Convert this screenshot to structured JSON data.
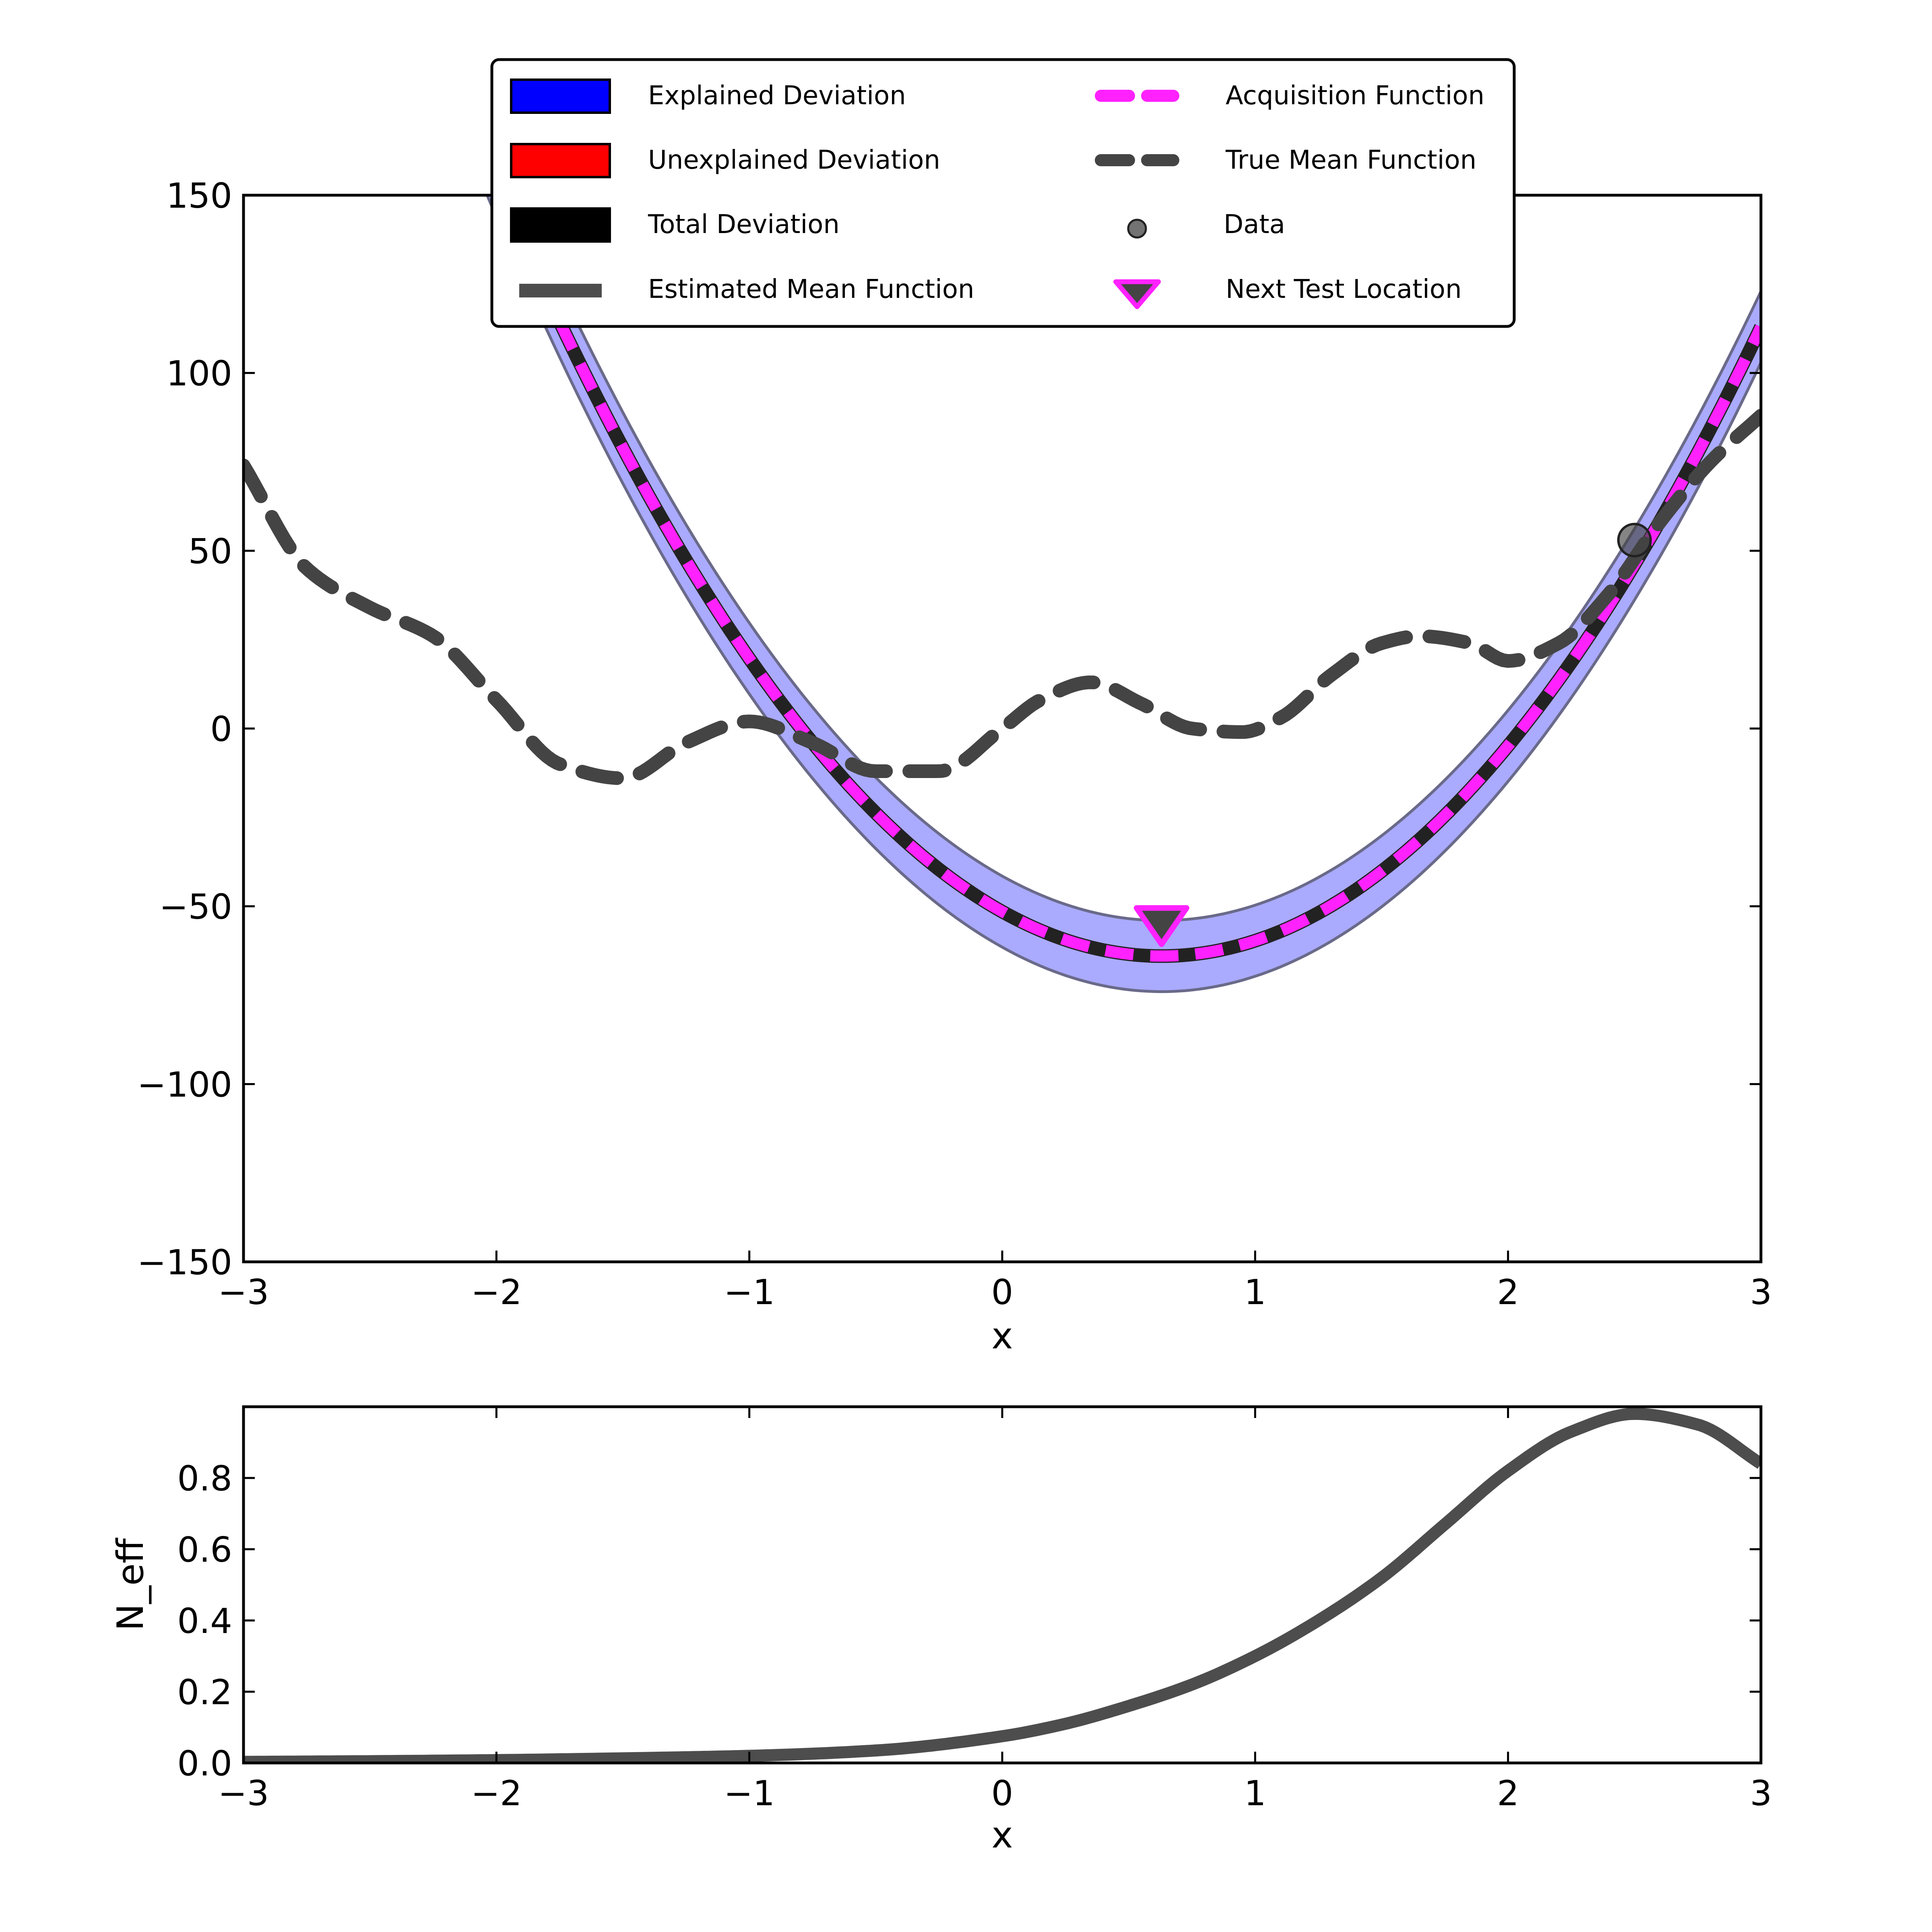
{
  "figure": {
    "colors": {
      "explained": "#0000ff",
      "unexplained": "#ff0000",
      "total": "#000000",
      "band_fill": "#aaaaff",
      "band_edge": "#6a6a8a",
      "estimated_mean": "#4d4d4d",
      "acquisition": "#ff22ff",
      "true_mean": "#444444",
      "data_point": "#444444",
      "next_test_fill": "#444444",
      "next_test_edge": "#ff22ff"
    }
  },
  "chart_data": [
    {
      "type": "line",
      "xlabel": "x",
      "ylabel": "",
      "xlim": [
        -3,
        3
      ],
      "ylim": [
        -150,
        150
      ],
      "xticks": [
        -3,
        -2,
        -1,
        0,
        1,
        2,
        3
      ],
      "xtick_labels": [
        "−3",
        "−2",
        "−1",
        "0",
        "1",
        "2",
        "3"
      ],
      "yticks": [
        150,
        100,
        50,
        0,
        -50,
        -100,
        -150
      ],
      "ytick_labels": [
        "150",
        "100",
        "50",
        "0",
        "−50",
        "−100",
        "−150"
      ],
      "grid": false,
      "legend": {
        "placement": "upper-center",
        "columns": 2,
        "entries": [
          {
            "label": "Explained Deviation",
            "kind": "patch",
            "color_key": "explained"
          },
          {
            "label": "Unexplained Deviation",
            "kind": "patch",
            "color_key": "unexplained"
          },
          {
            "label": "Total Deviation",
            "kind": "patch",
            "color_key": "total"
          },
          {
            "label": "Estimated Mean Function",
            "kind": "solid-line",
            "color_key": "estimated_mean"
          },
          {
            "label": "Acquisition Function",
            "kind": "dashed-line",
            "color_key": "acquisition"
          },
          {
            "label": "True Mean Function",
            "kind": "dashed-line",
            "color_key": "true_mean"
          },
          {
            "label": "Data",
            "kind": "circle",
            "color_key": "data_point"
          },
          {
            "label": "Next Test Location",
            "kind": "triangle",
            "color_key": "next_test_fill"
          }
        ]
      },
      "estimated_mean": {
        "model": "quadratic",
        "vertex_x": 0.63,
        "vertex_y": -64,
        "curvature": 31.5,
        "band_halfwidth": 10
      },
      "true_mean": {
        "x": [
          -3.0,
          -2.75,
          -2.5,
          -2.25,
          -2.0,
          -1.75,
          -1.5,
          -1.25,
          -1.0,
          -0.75,
          -0.5,
          -0.25,
          0.0,
          0.15,
          0.35,
          0.55,
          0.75,
          0.95,
          1.1,
          1.3,
          1.5,
          1.65,
          1.85,
          2.0,
          2.2,
          2.4,
          2.6,
          2.8,
          3.0
        ],
        "y": [
          74,
          45,
          34,
          26,
          8,
          -10,
          -14,
          -4,
          2,
          -4,
          -12,
          -12,
          0,
          8,
          13,
          7,
          0,
          -1,
          3,
          15,
          24,
          26,
          24,
          19,
          24,
          38,
          58,
          75,
          88
        ]
      },
      "data": {
        "x": [
          2.5
        ],
        "y": [
          53
        ]
      },
      "next_test_location": {
        "x": 0.63,
        "y": -55
      }
    },
    {
      "type": "line",
      "xlabel": "x",
      "ylabel": "N_eff",
      "xlim": [
        -3,
        3
      ],
      "ylim": [
        0,
        1
      ],
      "xticks": [
        -3,
        -2,
        -1,
        0,
        1,
        2,
        3
      ],
      "xtick_labels": [
        "−3",
        "−2",
        "−1",
        "0",
        "1",
        "2",
        "3"
      ],
      "yticks": [
        0.0,
        0.2,
        0.4,
        0.6,
        0.8
      ],
      "ytick_labels": [
        "0.0",
        "0.2",
        "0.4",
        "0.6",
        "0.8"
      ],
      "grid": false,
      "series": [
        {
          "x": [
            -3.0,
            -2.5,
            -2.0,
            -1.5,
            -1.0,
            -0.5,
            0.0,
            0.25,
            0.5,
            0.75,
            1.0,
            1.25,
            1.5,
            1.75,
            2.0,
            2.25,
            2.5,
            2.75,
            3.0
          ],
          "values": [
            0.003,
            0.005,
            0.008,
            0.013,
            0.02,
            0.035,
            0.075,
            0.11,
            0.16,
            0.22,
            0.3,
            0.4,
            0.52,
            0.67,
            0.82,
            0.93,
            0.98,
            0.95,
            0.84
          ]
        }
      ]
    }
  ]
}
